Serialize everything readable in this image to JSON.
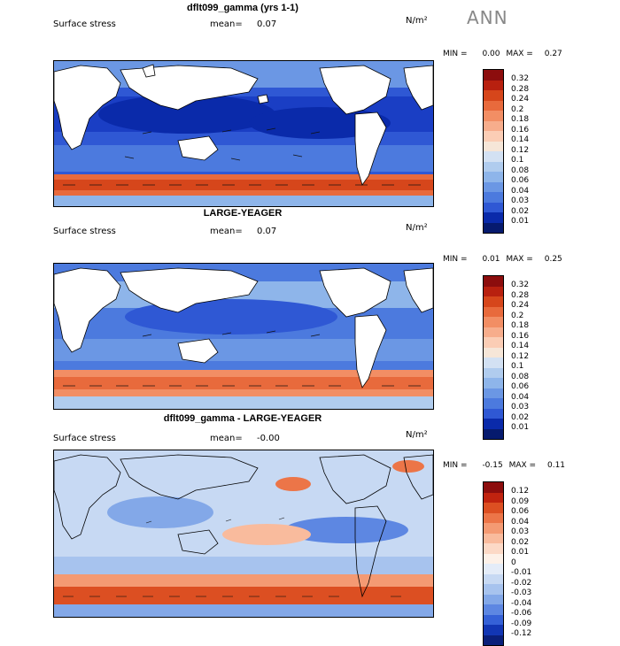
{
  "season": "ANN",
  "panels": [
    {
      "title": "dflt099_gamma (yrs 1-1)",
      "variable": "Surface stress",
      "mean_label": "mean=",
      "mean_value": "0.07",
      "units": "N/m²",
      "min_label": "MIN =",
      "min_value": "0.00",
      "max_label": "MAX =",
      "max_value": "0.27",
      "colorbar": {
        "labels": [
          "0.32",
          "0.28",
          "0.24",
          "0.2",
          "0.18",
          "0.16",
          "0.14",
          "0.12",
          "0.1",
          "0.08",
          "0.06",
          "0.04",
          "0.03",
          "0.02",
          "0.01"
        ],
        "colors": [
          "#8c0d0d",
          "#b8200f",
          "#d6461b",
          "#e86a3c",
          "#f28e64",
          "#f7ad8c",
          "#fbcdb5",
          "#f6e6d8",
          "#d3e1f3",
          "#b0ccee",
          "#8eb5ea",
          "#6b97e4",
          "#4c7ade",
          "#2f58d4",
          "#0a2aaa",
          "#061a6e"
        ]
      }
    },
    {
      "title": "LARGE-YEAGER",
      "variable": "Surface stress",
      "mean_label": "mean=",
      "mean_value": "0.07",
      "units": "N/m²",
      "min_label": "MIN =",
      "min_value": "0.01",
      "max_label": "MAX =",
      "max_value": "0.25",
      "colorbar": {
        "labels": [
          "0.32",
          "0.28",
          "0.24",
          "0.2",
          "0.18",
          "0.16",
          "0.14",
          "0.12",
          "0.1",
          "0.08",
          "0.06",
          "0.04",
          "0.03",
          "0.02",
          "0.01"
        ],
        "colors": [
          "#8c0d0d",
          "#b8200f",
          "#d6461b",
          "#e86a3c",
          "#f28e64",
          "#f7ad8c",
          "#fbcdb5",
          "#f6e6d8",
          "#d3e1f3",
          "#b0ccee",
          "#8eb5ea",
          "#6b97e4",
          "#4c7ade",
          "#2f58d4",
          "#0a2aaa",
          "#061a6e"
        ]
      }
    },
    {
      "title": "dflt099_gamma - LARGE-YEAGER",
      "variable": "Surface stress",
      "mean_label": "mean=",
      "mean_value": "-0.00",
      "units": "N/m²",
      "min_label": "MIN =",
      "min_value": "-0.15",
      "max_label": "MAX =",
      "max_value": "0.11",
      "colorbar": {
        "labels": [
          "0.12",
          "0.09",
          "0.06",
          "0.04",
          "0.03",
          "0.02",
          "0.01",
          "0",
          "-0.01",
          "-0.02",
          "-0.03",
          "-0.04",
          "-0.06",
          "-0.09",
          "-0.12"
        ],
        "colors": [
          "#8c0d0d",
          "#c0230f",
          "#dc4f22",
          "#ec7548",
          "#f49a73",
          "#f9bb9d",
          "#fcd9c6",
          "#fdf1e8",
          "#e4ecf8",
          "#c7d9f3",
          "#a7c3ee",
          "#83a8e8",
          "#5d87e2",
          "#3561d7",
          "#1236b4",
          "#0a1f7a"
        ]
      }
    }
  ]
}
